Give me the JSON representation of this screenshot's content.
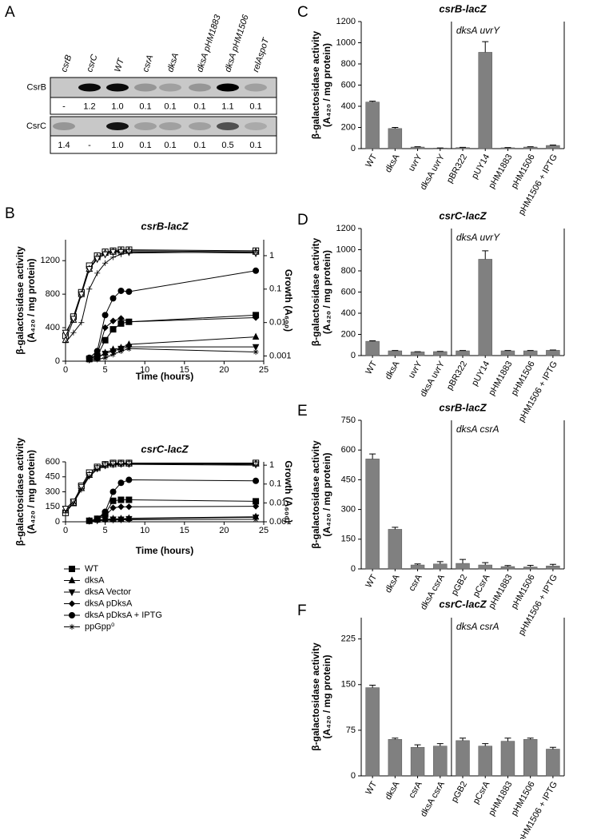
{
  "blot": {
    "label": "A",
    "columns": [
      "csrB",
      "csrC",
      "WT",
      "csrA",
      "dksA",
      "dksA pHM1883",
      "dksA pHM1506",
      "relAspoT"
    ],
    "rows": [
      {
        "name": "CsrB",
        "values": [
          "-",
          "1.2",
          "1.0",
          "0.1",
          "0.1",
          "0.1",
          "1.1",
          "0.1"
        ]
      },
      {
        "name": "CsrC",
        "values": [
          "1.4",
          "-",
          "1.0",
          "0.1",
          "0.1",
          "0.1",
          "0.5",
          "0.1"
        ]
      }
    ]
  },
  "chart_data": [
    {
      "type": "line",
      "label": "B",
      "title": "csrB-lacZ",
      "xlabel": "Time (hours)",
      "ylabel": [
        "β-galactosidase activity",
        "(A₄₂₀ / mg protein)"
      ],
      "y2label": "Growth (A₆₀₀)",
      "x": [
        0,
        1,
        2,
        3,
        4,
        5,
        6,
        7,
        8,
        24
      ],
      "xlim": [
        0,
        25
      ],
      "xticks": [
        0,
        5,
        10,
        15,
        20,
        25
      ],
      "ylim": [
        0,
        1450
      ],
      "yticks": [
        0,
        400,
        800,
        1200
      ],
      "y2lim": [
        0.0007,
        3
      ],
      "y2scale": "log",
      "y2ticks": [
        0.001,
        0.01,
        0.1,
        1
      ],
      "series": [
        {
          "name": "WT",
          "marker": "square",
          "color": "#000",
          "values": [
            null,
            null,
            null,
            30,
            60,
            250,
            380,
            450,
            470,
            550
          ]
        },
        {
          "name": "dksA",
          "marker": "triangle",
          "color": "#000",
          "values": [
            null,
            null,
            null,
            20,
            40,
            100,
            140,
            160,
            200,
            290
          ]
        },
        {
          "name": "dksA Vector",
          "marker": "triangle-down",
          "color": "#000",
          "values": [
            null,
            null,
            null,
            20,
            40,
            90,
            120,
            150,
            170,
            170
          ]
        },
        {
          "name": "dksA pDksA",
          "marker": "diamond",
          "color": "#000",
          "values": [
            null,
            null,
            null,
            30,
            80,
            400,
            480,
            510,
            470,
            520
          ]
        },
        {
          "name": "dksA pDksA + IPTG",
          "marker": "circle",
          "color": "#000",
          "values": [
            null,
            null,
            null,
            40,
            120,
            550,
            750,
            840,
            830,
            1080
          ]
        },
        {
          "name": "ppGpp⁰",
          "marker": "star",
          "color": "#000",
          "values": [
            null,
            null,
            null,
            10,
            20,
            40,
            80,
            120,
            150,
            110
          ]
        },
        {
          "marker": "square-open",
          "color": "#000",
          "axis": "y2",
          "values": [
            0.004,
            0.015,
            0.08,
            0.5,
            1.0,
            1.3,
            1.4,
            1.5,
            1.5,
            1.4
          ]
        },
        {
          "marker": "triangle-open",
          "color": "#000",
          "axis": "y2",
          "values": [
            0.003,
            0.012,
            0.07,
            0.4,
            0.9,
            1.2,
            1.3,
            1.4,
            1.4,
            1.3
          ]
        },
        {
          "marker": "triangle-down-open",
          "color": "#000",
          "axis": "y2",
          "values": [
            0.005,
            0.013,
            0.07,
            0.4,
            0.8,
            1.1,
            1.3,
            1.3,
            1.3,
            1.2
          ]
        },
        {
          "marker": "plus",
          "color": "#000",
          "axis": "y2",
          "values": [
            0.0025,
            0.005,
            0.01,
            0.1,
            0.3,
            0.6,
            0.9,
            1.1,
            1.2,
            1.3
          ]
        }
      ]
    },
    {
      "type": "line",
      "title": "csrC-lacZ",
      "xlabel": "Time (hours)",
      "ylabel": [
        "β-galactosidase activity",
        "(A₄₂₀ / mg protein)"
      ],
      "y2label": "Growth (A₆₀₀)",
      "x": [
        0,
        1,
        2,
        3,
        4,
        5,
        6,
        7,
        8,
        24
      ],
      "xlim": [
        0,
        25
      ],
      "xticks": [
        0,
        5,
        10,
        15,
        20,
        25
      ],
      "ylim": [
        0,
        600
      ],
      "yticks": [
        0,
        150,
        300,
        450,
        600
      ],
      "y2lim": [
        0.001,
        1.5
      ],
      "y2scale": "log",
      "y2ticks": [
        0.001,
        0.01,
        0.1,
        1
      ],
      "series": [
        {
          "marker": "square",
          "color": "#000",
          "values": [
            null,
            null,
            null,
            10,
            30,
            80,
            210,
            220,
            220,
            205
          ]
        },
        {
          "marker": "triangle",
          "color": "#000",
          "values": [
            null,
            null,
            null,
            10,
            20,
            25,
            30,
            30,
            35,
            50
          ]
        },
        {
          "marker": "triangle-down",
          "color": "#000",
          "values": [
            null,
            null,
            null,
            10,
            15,
            20,
            25,
            25,
            30,
            45
          ]
        },
        {
          "marker": "diamond",
          "color": "#000",
          "values": [
            null,
            null,
            null,
            10,
            25,
            60,
            140,
            150,
            150,
            155
          ]
        },
        {
          "marker": "circle",
          "color": "#000",
          "values": [
            null,
            null,
            null,
            10,
            30,
            100,
            300,
            390,
            420,
            410
          ]
        },
        {
          "marker": "star",
          "color": "#000",
          "values": [
            null,
            null,
            null,
            5,
            10,
            15,
            15,
            20,
            20,
            25
          ]
        },
        {
          "marker": "square-open",
          "color": "#000",
          "axis": "y2",
          "values": [
            0.003,
            0.01,
            0.08,
            0.4,
            0.8,
            1.1,
            1.3,
            1.3,
            1.3,
            1.3
          ]
        },
        {
          "marker": "triangle-open",
          "color": "#000",
          "axis": "y2",
          "values": [
            0.004,
            0.01,
            0.06,
            0.3,
            0.7,
            1.0,
            1.1,
            1.2,
            1.2,
            1.2
          ]
        },
        {
          "marker": "triangle-down-open",
          "color": "#000",
          "axis": "y2",
          "values": [
            0.005,
            0.012,
            0.07,
            0.3,
            0.7,
            1.0,
            1.2,
            1.2,
            1.2,
            1.1
          ]
        },
        {
          "marker": "plus",
          "color": "#000",
          "axis": "y2",
          "values": [
            0.003,
            0.01,
            0.05,
            0.25,
            0.6,
            0.9,
            1.0,
            1.1,
            1.1,
            1.0
          ]
        }
      ]
    },
    {
      "type": "bar",
      "label": "C",
      "title": "csrB-lacZ",
      "annotation": "dksA uvrY",
      "ylabel": [
        "β-galactosidase activity",
        "(A₄₂₀ / mg protein)"
      ],
      "color": "#808080",
      "categories": [
        "WT",
        "dksA",
        "uvrY",
        "dksA uvrY",
        "pBR322",
        "pUY14",
        "pHM1883",
        "pHM1506",
        "pHM1506 + IPTG"
      ],
      "values": [
        440,
        190,
        15,
        5,
        10,
        910,
        8,
        15,
        30
      ],
      "errors": [
        8,
        10,
        3,
        2,
        2,
        100,
        2,
        3,
        4
      ],
      "ylim": [
        0,
        1200
      ],
      "yticks": [
        0,
        200,
        400,
        600,
        800,
        1000,
        1200
      ]
    },
    {
      "type": "bar",
      "label": "D",
      "title": "csrC-lacZ",
      "annotation": "dksA uvrY",
      "ylabel": [
        "β-galactosidase activity",
        "(A₄₂₀ / mg protein)"
      ],
      "color": "#808080",
      "categories": [
        "WT",
        "dksA",
        "uvrY",
        "dksA uvrY",
        "pBR322",
        "pUY14",
        "pHM1883",
        "pHM1506",
        "pHM1506 + IPTG"
      ],
      "values": [
        135,
        45,
        35,
        38,
        45,
        910,
        45,
        45,
        50
      ],
      "errors": [
        5,
        3,
        2,
        2,
        3,
        80,
        3,
        3,
        3
      ],
      "ylim": [
        0,
        1200
      ],
      "yticks": [
        0,
        200,
        400,
        600,
        800,
        1000,
        1200
      ]
    },
    {
      "type": "bar",
      "label": "E",
      "title": "csrB-lacZ",
      "annotation": "dksA csrA",
      "ylabel": [
        "β-galactosidase activity",
        "(A₄₂₀ / mg protein)"
      ],
      "color": "#808080",
      "categories": [
        "WT",
        "dksA",
        "csrA",
        "dksA csrA",
        "pGB2",
        "pCsrA",
        "pHM1883",
        "pHM1506",
        "pHM1506 + IPTG"
      ],
      "values": [
        555,
        200,
        20,
        25,
        28,
        20,
        12,
        10,
        15
      ],
      "errors": [
        25,
        10,
        5,
        12,
        20,
        12,
        5,
        8,
        8
      ],
      "ylim": [
        0,
        750
      ],
      "yticks": [
        0,
        150,
        300,
        450,
        600,
        750
      ]
    },
    {
      "type": "bar",
      "label": "F",
      "title": "csrC-lacZ",
      "annotation": "dksA csrA",
      "ylabel": [
        "β-galactosidase activity",
        "(A₄₂₀ / mg protein)"
      ],
      "color": "#808080",
      "categories": [
        "WT",
        "dksA",
        "csrA",
        "dksA csrA",
        "pGB2",
        "pCsrA",
        "pHM1883",
        "pHM1506",
        "pHM1506 + IPTG"
      ],
      "values": [
        145,
        60,
        47,
        49,
        58,
        49,
        57,
        60,
        44
      ],
      "errors": [
        4,
        2,
        4,
        4,
        4,
        4,
        5,
        2,
        3
      ],
      "ylim": [
        0,
        260
      ],
      "yticks": [
        0,
        75,
        150,
        225
      ]
    }
  ]
}
